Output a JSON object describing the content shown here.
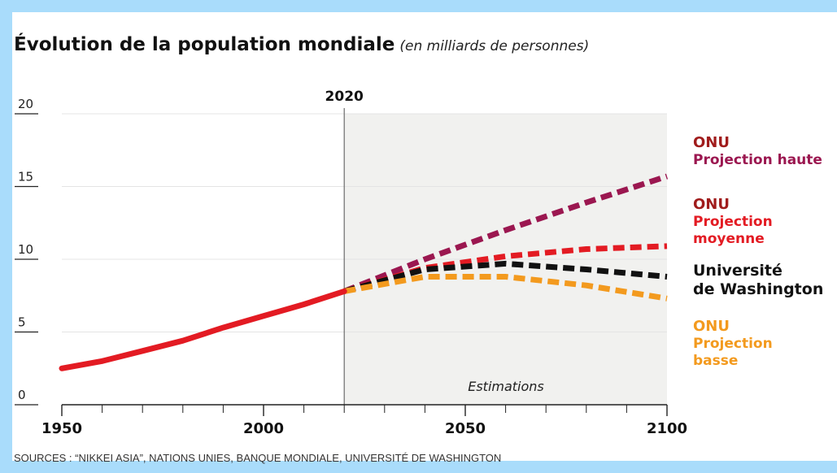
{
  "title": "Évolution de la population mondiale",
  "subtitle": "(en milliards de personnes)",
  "sources": "SOURCES : “NIKKEI ASIA”, NATIONS UNIES, BANQUE MONDIALE, UNIVERSITÉ DE WASHINGTON",
  "colors": {
    "historical": "#e31b23",
    "high": "#9b1750",
    "medium": "#e31b23",
    "washington": "#111111",
    "low": "#f39a1e",
    "head_onu": "#a01c1c"
  },
  "chart_data": {
    "type": "line",
    "xlim": [
      1950,
      2100
    ],
    "ylim": [
      0,
      20
    ],
    "x_ticks": [
      "1950",
      "2000",
      "2050",
      "2100"
    ],
    "y_ticks": [
      "0",
      "5",
      "10",
      "15",
      "20"
    ],
    "marker_label": "2020",
    "marker_x": 2020,
    "shaded_label": "Estimations",
    "grid": true,
    "series": [
      {
        "key": "historical",
        "style": "solid",
        "points": [
          [
            1950,
            2.5
          ],
          [
            1960,
            3.0
          ],
          [
            1970,
            3.7
          ],
          [
            1980,
            4.4
          ],
          [
            1990,
            5.3
          ],
          [
            2000,
            6.1
          ],
          [
            2010,
            6.9
          ],
          [
            2020,
            7.8
          ]
        ]
      },
      {
        "key": "high",
        "style": "dashed",
        "points": [
          [
            2020,
            7.8
          ],
          [
            2040,
            10.0
          ],
          [
            2060,
            12.0
          ],
          [
            2080,
            13.9
          ],
          [
            2100,
            15.7
          ]
        ]
      },
      {
        "key": "medium",
        "style": "dashed",
        "points": [
          [
            2020,
            7.8
          ],
          [
            2040,
            9.4
          ],
          [
            2060,
            10.2
          ],
          [
            2080,
            10.7
          ],
          [
            2100,
            10.9
          ]
        ]
      },
      {
        "key": "washington",
        "style": "dashed",
        "points": [
          [
            2020,
            7.8
          ],
          [
            2040,
            9.3
          ],
          [
            2060,
            9.7
          ],
          [
            2080,
            9.3
          ],
          [
            2100,
            8.8
          ]
        ]
      },
      {
        "key": "low",
        "style": "dashed",
        "points": [
          [
            2020,
            7.8
          ],
          [
            2040,
            8.8
          ],
          [
            2060,
            8.8
          ],
          [
            2080,
            8.2
          ],
          [
            2100,
            7.3
          ]
        ]
      }
    ]
  },
  "legend": [
    {
      "key": "high",
      "head": "ONU",
      "label": "Projection haute",
      "top": 0
    },
    {
      "key": "medium",
      "head": "ONU",
      "label": "Projection\nmoyenne",
      "top": 1
    },
    {
      "key": "washington",
      "head": "",
      "label": "Université\nde Washington",
      "top": 2
    },
    {
      "key": "low",
      "head": "ONU",
      "label": "Projection\nbasse",
      "top": 3
    }
  ]
}
